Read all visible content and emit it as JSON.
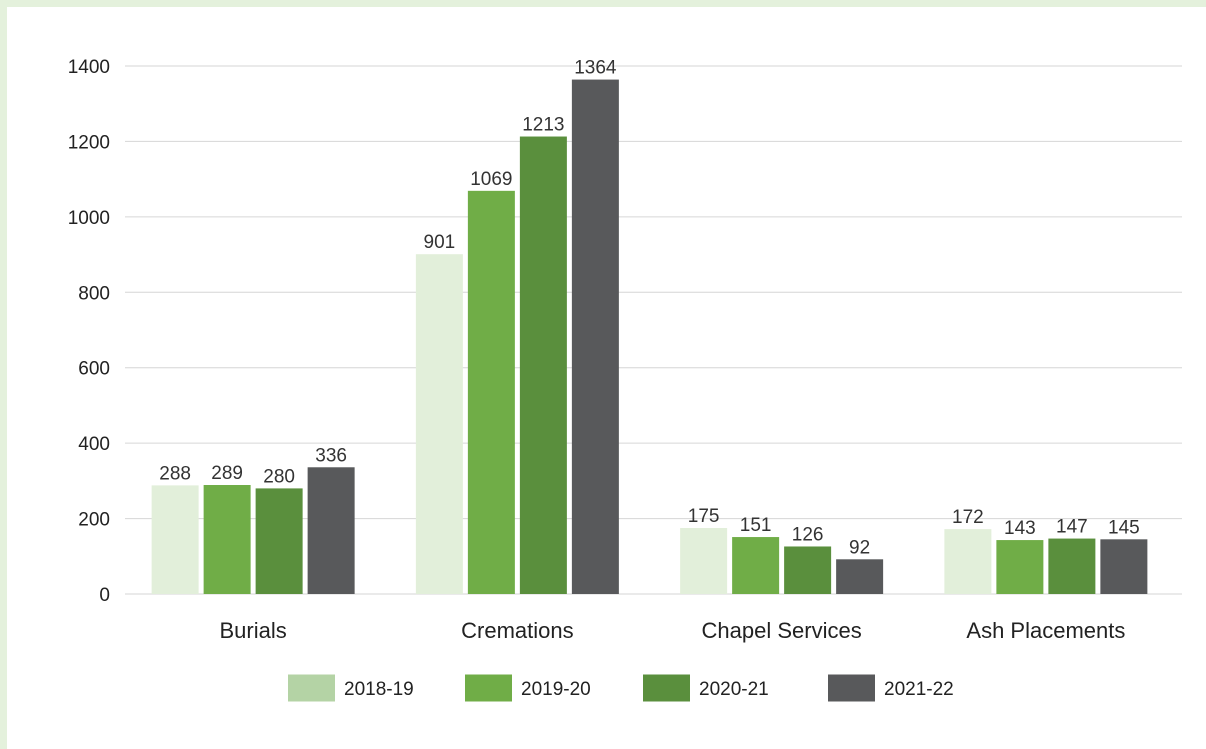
{
  "chart_data": {
    "type": "bar",
    "title": "",
    "xlabel": "",
    "ylabel": "",
    "ylim": [
      0,
      1400
    ],
    "yticks": [
      0,
      200,
      400,
      600,
      800,
      1000,
      1200,
      1400
    ],
    "grid": true,
    "legend_position": "bottom",
    "categories": [
      "Burials",
      "Cremations",
      "Chapel Services",
      "Ash Placements"
    ],
    "series": [
      {
        "name": "2018-19",
        "color": "#e2efda",
        "legend_color": "#b4d3a5",
        "values": [
          288,
          901,
          175,
          172
        ]
      },
      {
        "name": "2019-20",
        "color": "#70ad47",
        "values": [
          289,
          1069,
          151,
          143
        ]
      },
      {
        "name": "2020-21",
        "color": "#5a8f3d",
        "values": [
          280,
          1213,
          126,
          147
        ]
      },
      {
        "name": "2021-22",
        "color": "#58595b",
        "values": [
          336,
          1364,
          92,
          145
        ]
      }
    ]
  }
}
